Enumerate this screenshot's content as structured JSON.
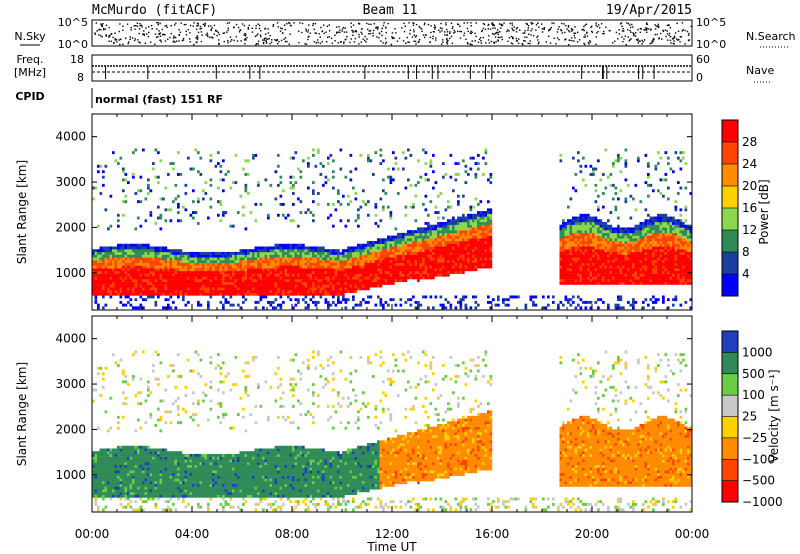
{
  "header": {
    "station": "McMurdo (fitACF)",
    "beam": "Beam 11",
    "date": "19/Apr/2015"
  },
  "status_panels": {
    "nsky_label": "N.Sky",
    "nsky_ticks": [
      "10^5",
      "10^0"
    ],
    "nsearch_label": "N.Search",
    "nsearch_ticks": [
      "10^5",
      "10^0"
    ],
    "freq_label_line1": "Freq.",
    "freq_label_line2": "[MHz]",
    "freq_ticks": [
      "18",
      "8"
    ],
    "nave_label": "Nave",
    "nave_ticks": [
      "60",
      "0"
    ],
    "cpid_label": "CPID",
    "cpid_text": "normal (fast) 151 RF"
  },
  "power_colorbar": {
    "label": "Power [dB]",
    "ticks": [
      "28",
      "24",
      "20",
      "16",
      "12",
      "8",
      "4"
    ],
    "colors": [
      "#ff0000",
      "#ff4500",
      "#ff8c00",
      "#ffd000",
      "#8bd84a",
      "#2e8b57",
      "#1a3fa0",
      "#0000ff"
    ]
  },
  "velocity_colorbar": {
    "label": "Velocity [m s⁻¹]",
    "ticks": [
      "1000",
      "500",
      "100",
      "25",
      "−25",
      "−100",
      "−500",
      "−1000"
    ],
    "colors": [
      "#1f3fbf",
      "#2e8b57",
      "#6bcc45",
      "#c8c8c8",
      "#ffd000",
      "#ff8c00",
      "#ff4500",
      "#ff0000"
    ]
  },
  "chart_data": [
    {
      "type": "heatmap",
      "title": "Power",
      "ylabel": "Slant Range [km]",
      "y_ticks": [
        "4000",
        "3000",
        "2000",
        "1000"
      ],
      "ylim": [
        180,
        4500
      ],
      "xlim": [
        0,
        24
      ],
      "x_ticks": [
        "00:00",
        "04:00",
        "08:00",
        "12:00",
        "16:00",
        "20:00",
        "00:00"
      ],
      "colorbar": "Power [dB]"
    },
    {
      "type": "heatmap",
      "title": "Velocity",
      "ylabel": "Slant Range [km]",
      "y_ticks": [
        "4000",
        "3000",
        "2000",
        "1000"
      ],
      "ylim": [
        180,
        4500
      ],
      "xlim": [
        0,
        24
      ],
      "x_ticks": [
        "00:00",
        "04:00",
        "08:00",
        "12:00",
        "16:00",
        "20:00",
        "00:00"
      ],
      "xlabel": "Time UT",
      "colorbar": "Velocity [m s⁻¹]"
    }
  ]
}
